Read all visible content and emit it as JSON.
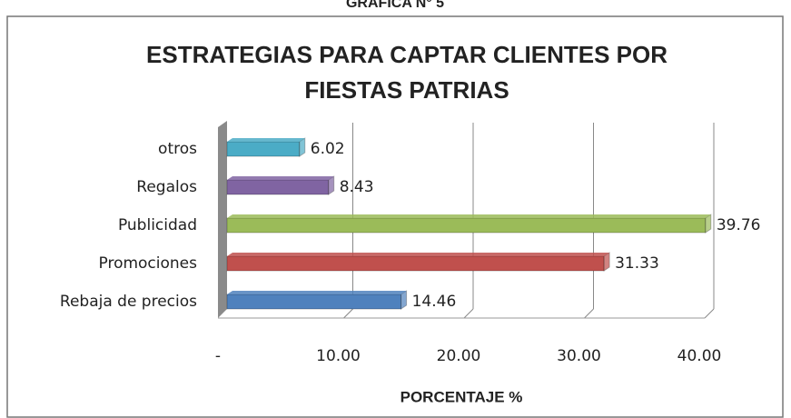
{
  "header": "GRAFICA N° 5",
  "chart_data": {
    "type": "bar",
    "orientation": "horizontal",
    "title": [
      "ESTRATEGIAS PARA CAPTAR CLIENTES POR",
      "FIESTAS PATRIAS"
    ],
    "categories": [
      "otros",
      "Regalos",
      "Publicidad",
      "Promociones",
      "Rebaja de precios"
    ],
    "values": [
      6.02,
      8.43,
      39.76,
      31.33,
      14.46
    ],
    "colors": [
      "#4bacc6",
      "#8064a2",
      "#9bbb59",
      "#c0504d",
      "#4f81bd"
    ],
    "xlim": [
      0,
      40
    ],
    "xticks": [
      {
        "value": 0,
        "label": "-"
      },
      {
        "value": 10,
        "label": "10.00"
      },
      {
        "value": 20,
        "label": "20.00"
      },
      {
        "value": 30,
        "label": "30.00"
      },
      {
        "value": 40,
        "label": "40.00"
      }
    ],
    "xlabel": "PORCENTAJE %",
    "grid": true
  }
}
